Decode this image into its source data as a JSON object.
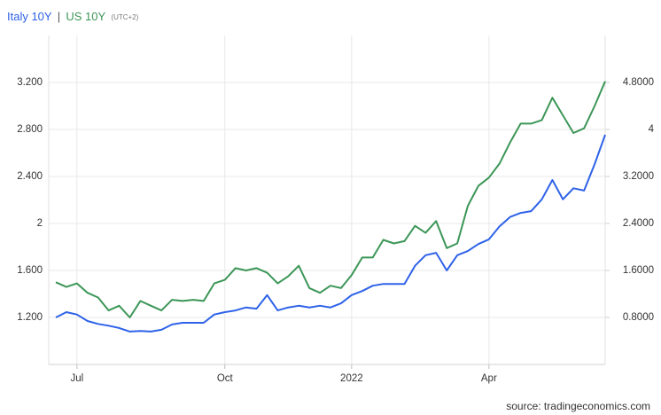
{
  "chart_data": {
    "type": "line",
    "separator": "|",
    "timezone": "(UTC+2)",
    "source": "source: tradingeconomics.com",
    "categories": [
      null,
      null,
      "Jul",
      null,
      null,
      null,
      null,
      null,
      null,
      null,
      null,
      null,
      null,
      null,
      null,
      null,
      "Oct",
      null,
      null,
      null,
      null,
      null,
      null,
      null,
      null,
      null,
      null,
      null,
      "2022",
      null,
      null,
      null,
      null,
      null,
      null,
      null,
      null,
      null,
      null,
      null,
      null,
      "Apr",
      null,
      null,
      null,
      null,
      null,
      null,
      null,
      null,
      null,
      null,
      null
    ],
    "series": [
      {
        "name": "Italy 10Y",
        "color": "#2e62e8",
        "axis": "y2",
        "values": [
          0.8,
          0.89,
          0.85,
          0.74,
          0.69,
          0.66,
          0.62,
          0.56,
          0.57,
          0.56,
          0.59,
          0.68,
          0.71,
          0.71,
          0.71,
          0.85,
          0.89,
          0.92,
          0.97,
          0.95,
          1.18,
          0.92,
          0.97,
          1.0,
          0.97,
          1.0,
          0.97,
          1.04,
          1.18,
          1.25,
          1.34,
          1.37,
          1.37,
          1.37,
          1.68,
          1.86,
          1.9,
          1.6,
          1.86,
          1.93,
          2.05,
          2.13,
          2.35,
          2.51,
          2.58,
          2.61,
          2.81,
          3.14,
          2.81,
          3.0,
          2.96,
          3.41,
          3.91
        ]
      },
      {
        "name": "US 10Y",
        "color": "#3c9657",
        "values": [
          1.5,
          1.46,
          1.49,
          1.41,
          1.37,
          1.26,
          1.3,
          1.2,
          1.34,
          1.3,
          1.26,
          1.35,
          1.34,
          1.35,
          1.34,
          1.49,
          1.52,
          1.62,
          1.6,
          1.62,
          1.58,
          1.49,
          1.55,
          1.64,
          1.45,
          1.41,
          1.47,
          1.45,
          1.56,
          1.71,
          1.71,
          1.86,
          1.83,
          1.85,
          1.98,
          1.92,
          2.02,
          1.79,
          1.83,
          2.15,
          2.32,
          2.39,
          2.51,
          2.69,
          2.85,
          2.85,
          2.88,
          3.07,
          2.92,
          2.77,
          2.81,
          3.0,
          3.21
        ]
      }
    ],
    "ylim": [
      0.8,
      3.6
    ],
    "yticks": [
      {
        "value": 1.2,
        "label": "1.200"
      },
      {
        "value": 1.6,
        "label": "1.600"
      },
      2,
      {
        "value": 2.4,
        "label": "2.400"
      },
      {
        "value": 2.8,
        "label": "2.800"
      },
      {
        "value": 3.2,
        "label": "3.200"
      }
    ],
    "y2lim": [
      0,
      5.6
    ],
    "y2ticks": [
      {
        "value": 0.8,
        "label": "0.8000"
      },
      {
        "value": 1.6,
        "label": "1.6000"
      },
      {
        "value": 2.4,
        "label": "2.4000"
      },
      {
        "value": 3.2,
        "label": "3.2000"
      },
      4,
      {
        "value": 4.8,
        "label": "4.8000"
      }
    ],
    "grid": true
  }
}
